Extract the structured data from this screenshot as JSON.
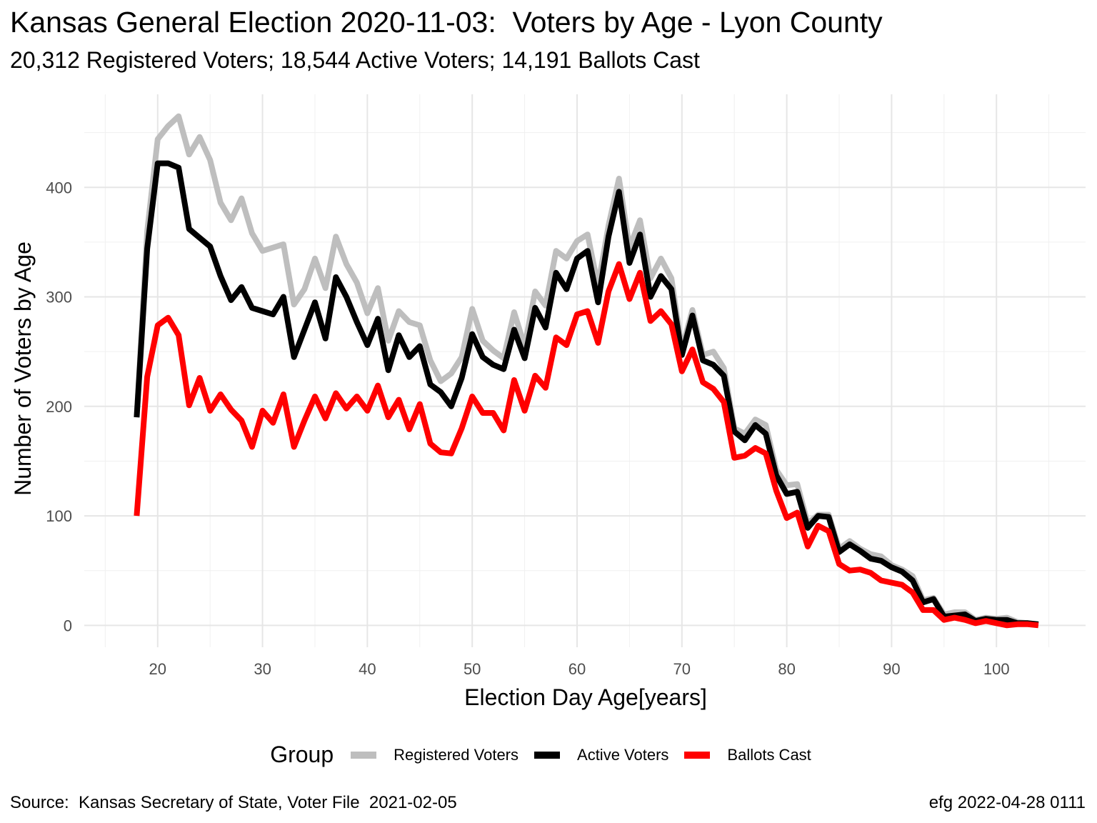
{
  "chart_data": {
    "type": "line",
    "title": "Kansas General Election 2020-11-03:  Voters by Age - Lyon County",
    "subtitle": "20,312 Registered Voters; 18,544 Active Voters; 14,191 Ballots Cast",
    "xlabel": "Election Day Age[years]",
    "ylabel": "Number of Voters by Age",
    "xlim": [
      18,
      104
    ],
    "ylim": [
      0,
      465
    ],
    "x_ticks": [
      20,
      30,
      40,
      50,
      60,
      70,
      80,
      90,
      100
    ],
    "y_ticks": [
      0,
      100,
      200,
      300,
      400
    ],
    "grid": true,
    "legend_title": "Group",
    "legend_position": "bottom",
    "x": [
      18,
      19,
      20,
      21,
      22,
      23,
      24,
      25,
      26,
      27,
      28,
      29,
      30,
      31,
      32,
      33,
      34,
      35,
      36,
      37,
      38,
      39,
      40,
      41,
      42,
      43,
      44,
      45,
      46,
      47,
      48,
      49,
      50,
      51,
      52,
      53,
      54,
      55,
      56,
      57,
      58,
      59,
      60,
      61,
      62,
      63,
      64,
      65,
      66,
      67,
      68,
      69,
      70,
      71,
      72,
      73,
      74,
      75,
      76,
      77,
      78,
      79,
      80,
      81,
      82,
      83,
      84,
      85,
      86,
      87,
      88,
      89,
      90,
      91,
      92,
      93,
      94,
      95,
      96,
      97,
      98,
      99,
      100,
      101,
      102,
      103,
      104
    ],
    "series": [
      {
        "name": "Registered Voters",
        "color": "#bebebe",
        "values": [
          190,
          360,
          444,
          456,
          465,
          430,
          446,
          425,
          386,
          370,
          390,
          358,
          342,
          345,
          348,
          293,
          307,
          335,
          308,
          355,
          330,
          313,
          285,
          308,
          260,
          287,
          277,
          274,
          242,
          223,
          230,
          245,
          289,
          260,
          251,
          244,
          286,
          255,
          305,
          292,
          342,
          335,
          351,
          357,
          310,
          365,
          408,
          345,
          370,
          317,
          335,
          317,
          252,
          288,
          247,
          250,
          235,
          180,
          175,
          188,
          183,
          142,
          128,
          129,
          93,
          101,
          101,
          70,
          77,
          70,
          65,
          63,
          55,
          51,
          45,
          23,
          25,
          10,
          12,
          12,
          5,
          7,
          6,
          7,
          3,
          2,
          1
        ]
      },
      {
        "name": "Active Voters",
        "color": "#000000",
        "values": [
          190,
          344,
          422,
          422,
          418,
          362,
          354,
          346,
          319,
          297,
          309,
          290,
          287,
          284,
          300,
          245,
          270,
          295,
          262,
          318,
          300,
          277,
          256,
          280,
          233,
          265,
          245,
          255,
          220,
          213,
          200,
          226,
          266,
          245,
          238,
          234,
          270,
          244,
          290,
          272,
          322,
          307,
          335,
          342,
          295,
          355,
          396,
          331,
          357,
          300,
          319,
          307,
          247,
          283,
          242,
          238,
          228,
          177,
          169,
          183,
          175,
          137,
          120,
          122,
          89,
          100,
          99,
          67,
          74,
          68,
          61,
          59,
          53,
          49,
          41,
          21,
          24,
          8,
          9,
          10,
          4,
          6,
          5,
          5,
          2,
          2,
          1
        ]
      },
      {
        "name": "Ballots Cast",
        "color": "#ff0000",
        "values": [
          100,
          227,
          274,
          281,
          265,
          201,
          226,
          196,
          211,
          197,
          187,
          163,
          196,
          185,
          211,
          163,
          187,
          209,
          189,
          212,
          198,
          209,
          196,
          219,
          190,
          206,
          179,
          202,
          166,
          158,
          157,
          180,
          209,
          194,
          194,
          178,
          224,
          196,
          228,
          217,
          263,
          256,
          284,
          287,
          258,
          305,
          330,
          298,
          322,
          278,
          287,
          275,
          232,
          252,
          222,
          216,
          204,
          153,
          155,
          162,
          157,
          123,
          98,
          103,
          72,
          91,
          86,
          56,
          50,
          51,
          48,
          41,
          39,
          37,
          30,
          14,
          14,
          5,
          7,
          5,
          2,
          4,
          2,
          0,
          1,
          1,
          0
        ]
      }
    ]
  },
  "caption_left": "Source:  Kansas Secretary of State, Voter File  2021-02-05",
  "caption_right": "efg 2022-04-28 0111"
}
